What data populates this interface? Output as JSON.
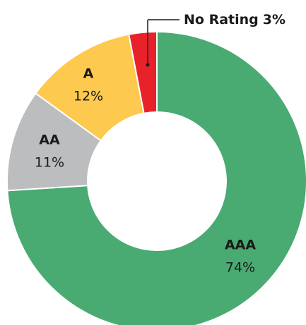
{
  "chart_data": {
    "type": "donut",
    "categories": [
      "AAA",
      "AA",
      "A",
      "No Rating"
    ],
    "values": [
      74,
      11,
      12,
      3
    ],
    "value_labels": [
      "74%",
      "11%",
      "12%",
      "3%"
    ],
    "colors": [
      "#4aab72",
      "#bcbdbf",
      "#fdc94f",
      "#e8222b"
    ]
  }
}
